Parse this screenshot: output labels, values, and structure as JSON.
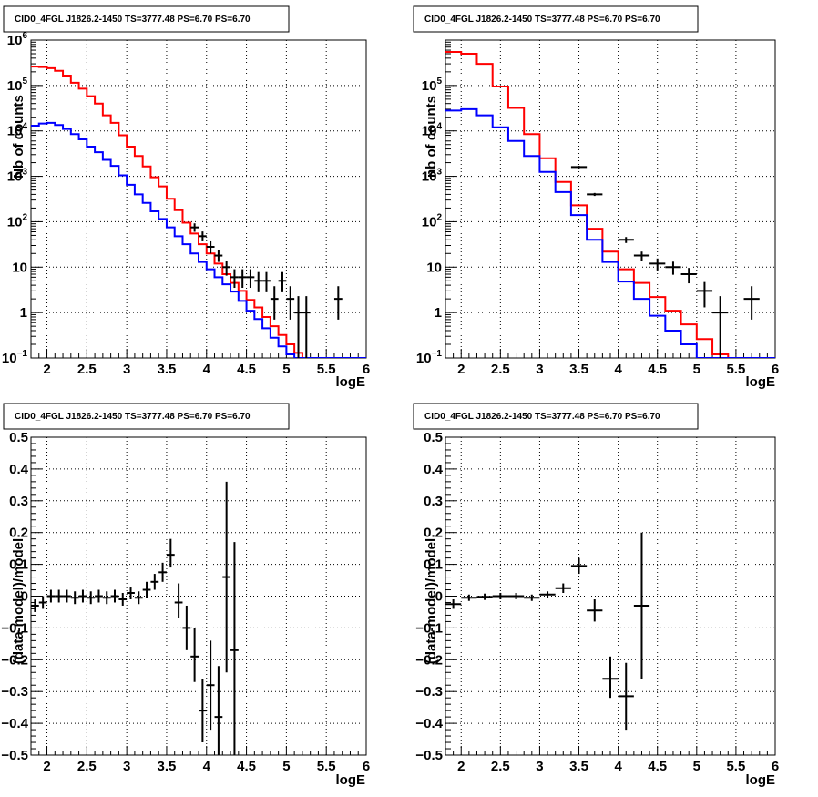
{
  "chart_data": [
    {
      "type": "line",
      "title": "CID0_4FGL J1826.2-1450 TS=3777.48 PS=6.70 PS=6.70",
      "xlabel": "logE",
      "ylabel": "Nb of counts",
      "xlim": [
        1.8,
        6.0
      ],
      "ylim": [
        0.1,
        1000000
      ],
      "log_y": true,
      "grid": true,
      "x_ticks": [
        "2",
        "2.5",
        "3",
        "3.5",
        "4",
        "4.5",
        "5",
        "5.5",
        "6"
      ],
      "y_ticks": [
        {
          "base": "10",
          "exp": "−1"
        },
        {
          "base": "1",
          "exp": ""
        },
        {
          "base": "10",
          "exp": ""
        },
        {
          "base": "10",
          "exp": "2"
        },
        {
          "base": "10",
          "exp": "3"
        },
        {
          "base": "10",
          "exp": "4"
        },
        {
          "base": "10",
          "exp": "5"
        },
        {
          "base": "10",
          "exp": "6"
        }
      ],
      "series": [
        {
          "color": "#ff0000",
          "kind": "step",
          "edges": [
            1.8,
            1.9,
            2.0,
            2.1,
            2.2,
            2.3,
            2.4,
            2.5,
            2.6,
            2.7,
            2.8,
            2.9,
            3.0,
            3.1,
            3.2,
            3.3,
            3.4,
            3.5,
            3.6,
            3.7,
            3.8,
            3.9,
            4.0,
            4.1,
            4.2,
            4.3,
            4.4,
            4.5,
            4.6,
            4.7,
            4.8,
            4.9,
            5.0,
            5.1,
            5.2,
            5.3,
            5.4,
            5.5,
            5.6,
            5.7,
            5.8,
            5.9,
            6.0
          ],
          "values": [
            260000,
            255000,
            240000,
            210000,
            165000,
            115000,
            85000,
            58000,
            40000,
            22000,
            15000,
            8000,
            4500,
            2800,
            1650,
            950,
            600,
            320,
            180,
            95,
            55,
            32,
            20,
            12,
            7,
            4.5,
            3,
            1.9,
            1.3,
            0.8,
            0.5,
            0.32,
            0.2,
            0.13,
            0.1,
            0.1,
            0.1,
            0.1,
            0.1,
            0.1,
            0.1,
            0.1
          ]
        },
        {
          "color": "#0000ff",
          "kind": "step",
          "edges": [
            1.8,
            1.9,
            2.0,
            2.1,
            2.2,
            2.3,
            2.4,
            2.5,
            2.6,
            2.7,
            2.8,
            2.9,
            3.0,
            3.1,
            3.2,
            3.3,
            3.4,
            3.5,
            3.6,
            3.7,
            3.8,
            3.9,
            4.0,
            4.1,
            4.2,
            4.3,
            4.4,
            4.5,
            4.6,
            4.7,
            4.8,
            4.9,
            5.0,
            5.1,
            5.2,
            5.3,
            5.4,
            5.5,
            5.6,
            5.7,
            5.8,
            5.9,
            6.0
          ],
          "values": [
            13000,
            14500,
            15000,
            13500,
            11000,
            8500,
            6500,
            4500,
            3400,
            2300,
            1700,
            1050,
            650,
            400,
            260,
            170,
            115,
            75,
            48,
            32,
            20,
            13,
            9,
            6,
            4.2,
            2.9,
            1.8,
            1.1,
            0.72,
            0.45,
            0.28,
            0.18,
            0.12,
            0.1,
            0.1,
            0.1,
            0.1,
            0.1,
            0.1,
            0.1,
            0.1,
            0.1
          ]
        },
        {
          "color": "#000000",
          "kind": "errorbar",
          "points": [
            {
              "x": 3.85,
              "y": 75,
              "xerr": 0.05,
              "ylo": 60,
              "yhi": 92
            },
            {
              "x": 3.95,
              "y": 48,
              "xerr": 0.05,
              "ylo": 37,
              "yhi": 61
            },
            {
              "x": 4.05,
              "y": 28,
              "xerr": 0.05,
              "ylo": 20,
              "yhi": 37
            },
            {
              "x": 4.15,
              "y": 18,
              "xerr": 0.05,
              "ylo": 13,
              "yhi": 24
            },
            {
              "x": 4.25,
              "y": 10,
              "xerr": 0.05,
              "ylo": 6.5,
              "yhi": 14
            },
            {
              "x": 4.35,
              "y": 6,
              "xerr": 0.05,
              "ylo": 3.5,
              "yhi": 9
            },
            {
              "x": 4.45,
              "y": 6,
              "xerr": 0.05,
              "ylo": 3.5,
              "yhi": 9
            },
            {
              "x": 4.55,
              "y": 6,
              "xerr": 0.05,
              "ylo": 3.5,
              "yhi": 9
            },
            {
              "x": 4.65,
              "y": 5,
              "xerr": 0.05,
              "ylo": 2.8,
              "yhi": 7.8
            },
            {
              "x": 4.75,
              "y": 5,
              "xerr": 0.05,
              "ylo": 2.8,
              "yhi": 7.8
            },
            {
              "x": 4.85,
              "y": 2,
              "xerr": 0.05,
              "ylo": 0.7,
              "yhi": 3.8
            },
            {
              "x": 4.95,
              "y": 5,
              "xerr": 0.05,
              "ylo": 2.8,
              "yhi": 7.8
            },
            {
              "x": 5.05,
              "y": 2,
              "xerr": 0.05,
              "ylo": 0.7,
              "yhi": 3.8
            },
            {
              "x": 5.15,
              "y": 1,
              "xerr": 0.05,
              "ylo": 0.1,
              "yhi": 2.3
            },
            {
              "x": 5.25,
              "y": 1,
              "xerr": 0.05,
              "ylo": 0.1,
              "yhi": 2.3
            },
            {
              "x": 5.65,
              "y": 2,
              "xerr": 0.05,
              "ylo": 0.7,
              "yhi": 3.8
            }
          ]
        }
      ]
    },
    {
      "type": "line",
      "title": "CID0_4FGL J1826.2-1450 TS=3777.48 PS=6.70 PS=6.70",
      "xlabel": "logE",
      "ylabel": "nb of counts",
      "xlim": [
        1.8,
        6.0
      ],
      "ylim": [
        0.1,
        1000000
      ],
      "log_y": true,
      "grid": true,
      "x_ticks": [
        "2",
        "2.5",
        "3",
        "3.5",
        "4",
        "4.5",
        "5",
        "5.5",
        "6"
      ],
      "y_ticks": [
        {
          "base": "10",
          "exp": "−1"
        },
        {
          "base": "1",
          "exp": ""
        },
        {
          "base": "10",
          "exp": ""
        },
        {
          "base": "10",
          "exp": "2"
        },
        {
          "base": "10",
          "exp": "3"
        },
        {
          "base": "10",
          "exp": "4"
        },
        {
          "base": "10",
          "exp": "5"
        }
      ],
      "series": [
        {
          "color": "#ff0000",
          "kind": "step",
          "edges": [
            1.8,
            2.0,
            2.2,
            2.4,
            2.6,
            2.8,
            3.0,
            3.2,
            3.4,
            3.6,
            3.8,
            4.0,
            4.2,
            4.4,
            4.6,
            4.8,
            5.0,
            5.2,
            5.4,
            5.6,
            5.8,
            6.0
          ],
          "values": [
            550000,
            500000,
            300000,
            95000,
            32000,
            8500,
            2500,
            750,
            230,
            70,
            22,
            9,
            4.5,
            2.2,
            1.1,
            0.55,
            0.26,
            0.12,
            0.1,
            0.1,
            0.1
          ]
        },
        {
          "color": "#0000ff",
          "kind": "step",
          "edges": [
            1.8,
            2.0,
            2.2,
            2.4,
            2.6,
            2.8,
            3.0,
            3.2,
            3.4,
            3.6,
            3.8,
            4.0,
            4.2,
            4.4,
            4.6,
            4.8,
            5.0,
            5.2,
            5.4,
            5.6,
            5.8,
            6.0
          ],
          "values": [
            28000,
            30000,
            22000,
            12000,
            6000,
            2800,
            1250,
            450,
            140,
            40,
            13,
            4.8,
            2,
            0.85,
            0.4,
            0.2,
            0.1,
            0.1,
            0.1,
            0.1,
            0.1
          ]
        },
        {
          "color": "#000000",
          "kind": "errorbar",
          "points": [
            {
              "x": 3.5,
              "y": 1600,
              "xerr": 0.1,
              "ylo": 1500,
              "yhi": 1700
            },
            {
              "x": 3.7,
              "y": 400,
              "xerr": 0.1,
              "ylo": 370,
              "yhi": 430
            },
            {
              "x": 4.1,
              "y": 40,
              "xerr": 0.1,
              "ylo": 34,
              "yhi": 46
            },
            {
              "x": 4.3,
              "y": 18,
              "xerr": 0.1,
              "ylo": 14,
              "yhi": 22
            },
            {
              "x": 4.5,
              "y": 12,
              "xerr": 0.1,
              "ylo": 8.5,
              "yhi": 15.5
            },
            {
              "x": 4.7,
              "y": 10,
              "xerr": 0.1,
              "ylo": 6.8,
              "yhi": 13.2
            },
            {
              "x": 4.9,
              "y": 7,
              "xerr": 0.1,
              "ylo": 4.4,
              "yhi": 9.6
            },
            {
              "x": 5.1,
              "y": 3,
              "xerr": 0.1,
              "ylo": 1.3,
              "yhi": 4.7
            },
            {
              "x": 5.3,
              "y": 1,
              "xerr": 0.1,
              "ylo": 0.1,
              "yhi": 2.3
            },
            {
              "x": 5.7,
              "y": 2,
              "xerr": 0.1,
              "ylo": 0.7,
              "yhi": 3.8
            }
          ]
        }
      ]
    },
    {
      "type": "scatter",
      "title": "CID0_4FGL J1826.2-1450 TS=3777.48 PS=6.70 PS=6.70",
      "xlabel": "logE",
      "ylabel": "(data-model)/model",
      "xlim": [
        1.8,
        6.0
      ],
      "ylim": [
        -0.5,
        0.5
      ],
      "grid": true,
      "x_ticks": [
        "2",
        "2.5",
        "3",
        "3.5",
        "4",
        "4.5",
        "5",
        "5.5",
        "6"
      ],
      "y_ticks": [
        "−0.5",
        "−0.4",
        "−0.3",
        "−0.2",
        "−0.1",
        "0",
        "0.1",
        "0.2",
        "0.3",
        "0.4",
        "0.5"
      ],
      "series": [
        {
          "color": "#000000",
          "kind": "errorbar",
          "points": [
            {
              "x": 1.85,
              "y": -0.03,
              "xerr": 0.05,
              "ylo": -0.05,
              "yhi": -0.01
            },
            {
              "x": 1.95,
              "y": -0.02,
              "xerr": 0.05,
              "ylo": -0.04,
              "yhi": 0.0
            },
            {
              "x": 2.05,
              "y": 0.0,
              "xerr": 0.05,
              "ylo": -0.02,
              "yhi": 0.02
            },
            {
              "x": 2.15,
              "y": 0.0,
              "xerr": 0.05,
              "ylo": -0.02,
              "yhi": 0.02
            },
            {
              "x": 2.25,
              "y": 0.0,
              "xerr": 0.05,
              "ylo": -0.02,
              "yhi": 0.02
            },
            {
              "x": 2.35,
              "y": -0.005,
              "xerr": 0.05,
              "ylo": -0.025,
              "yhi": 0.015
            },
            {
              "x": 2.45,
              "y": 0.0,
              "xerr": 0.05,
              "ylo": -0.02,
              "yhi": 0.02
            },
            {
              "x": 2.55,
              "y": -0.005,
              "xerr": 0.05,
              "ylo": -0.025,
              "yhi": 0.015
            },
            {
              "x": 2.65,
              "y": 0.0,
              "xerr": 0.05,
              "ylo": -0.02,
              "yhi": 0.02
            },
            {
              "x": 2.75,
              "y": -0.005,
              "xerr": 0.05,
              "ylo": -0.025,
              "yhi": 0.015
            },
            {
              "x": 2.85,
              "y": 0.0,
              "xerr": 0.05,
              "ylo": -0.02,
              "yhi": 0.02
            },
            {
              "x": 2.95,
              "y": -0.01,
              "xerr": 0.05,
              "ylo": -0.03,
              "yhi": 0.01
            },
            {
              "x": 3.05,
              "y": 0.01,
              "xerr": 0.05,
              "ylo": -0.01,
              "yhi": 0.03
            },
            {
              "x": 3.15,
              "y": -0.005,
              "xerr": 0.05,
              "ylo": -0.025,
              "yhi": 0.015
            },
            {
              "x": 3.25,
              "y": 0.02,
              "xerr": 0.05,
              "ylo": -0.005,
              "yhi": 0.045
            },
            {
              "x": 3.35,
              "y": 0.045,
              "xerr": 0.05,
              "ylo": 0.02,
              "yhi": 0.07
            },
            {
              "x": 3.45,
              "y": 0.075,
              "xerr": 0.05,
              "ylo": 0.045,
              "yhi": 0.105
            },
            {
              "x": 3.55,
              "y": 0.13,
              "xerr": 0.05,
              "ylo": 0.09,
              "yhi": 0.18
            },
            {
              "x": 3.65,
              "y": -0.02,
              "xerr": 0.05,
              "ylo": -0.07,
              "yhi": 0.04
            },
            {
              "x": 3.75,
              "y": -0.1,
              "xerr": 0.05,
              "ylo": -0.17,
              "yhi": -0.03
            },
            {
              "x": 3.85,
              "y": -0.19,
              "xerr": 0.05,
              "ylo": -0.27,
              "yhi": -0.1
            },
            {
              "x": 3.95,
              "y": -0.36,
              "xerr": 0.05,
              "ylo": -0.46,
              "yhi": -0.26
            },
            {
              "x": 4.05,
              "y": -0.28,
              "xerr": 0.05,
              "ylo": -0.42,
              "yhi": -0.14
            },
            {
              "x": 4.15,
              "y": -0.38,
              "xerr": 0.05,
              "ylo": -0.5,
              "yhi": -0.22
            },
            {
              "x": 4.25,
              "y": 0.06,
              "xerr": 0.05,
              "ylo": -0.24,
              "yhi": 0.36
            },
            {
              "x": 4.35,
              "y": -0.17,
              "xerr": 0.05,
              "ylo": -0.5,
              "yhi": 0.17
            }
          ]
        }
      ]
    },
    {
      "type": "scatter",
      "title": "CID0_4FGL J1826.2-1450 TS=3777.48 PS=6.70 PS=6.70",
      "xlabel": "logE",
      "ylabel": "(data-model)/model",
      "xlim": [
        1.8,
        6.0
      ],
      "ylim": [
        -0.5,
        0.5
      ],
      "grid": true,
      "x_ticks": [
        "2",
        "2.5",
        "3",
        "3.5",
        "4",
        "4.5",
        "5",
        "5.5",
        "6"
      ],
      "y_ticks": [
        "−0.5",
        "−0.4",
        "−0.3",
        "−0.2",
        "−0.1",
        "0",
        "0.1",
        "0.2",
        "0.3",
        "0.4",
        "0.5"
      ],
      "series": [
        {
          "color": "#000000",
          "kind": "errorbar",
          "points": [
            {
              "x": 1.9,
              "y": -0.025,
              "xerr": 0.1,
              "ylo": -0.04,
              "yhi": -0.01
            },
            {
              "x": 2.1,
              "y": -0.005,
              "xerr": 0.1,
              "ylo": -0.015,
              "yhi": 0.005
            },
            {
              "x": 2.3,
              "y": -0.002,
              "xerr": 0.1,
              "ylo": -0.012,
              "yhi": 0.008
            },
            {
              "x": 2.5,
              "y": 0.0,
              "xerr": 0.1,
              "ylo": -0.01,
              "yhi": 0.01
            },
            {
              "x": 2.7,
              "y": 0.0,
              "xerr": 0.1,
              "ylo": -0.01,
              "yhi": 0.01
            },
            {
              "x": 2.9,
              "y": -0.005,
              "xerr": 0.1,
              "ylo": -0.015,
              "yhi": 0.005
            },
            {
              "x": 3.1,
              "y": 0.005,
              "xerr": 0.1,
              "ylo": -0.005,
              "yhi": 0.015
            },
            {
              "x": 3.3,
              "y": 0.025,
              "xerr": 0.1,
              "ylo": 0.01,
              "yhi": 0.04
            },
            {
              "x": 3.5,
              "y": 0.095,
              "xerr": 0.1,
              "ylo": 0.07,
              "yhi": 0.12
            },
            {
              "x": 3.7,
              "y": -0.045,
              "xerr": 0.1,
              "ylo": -0.08,
              "yhi": -0.01
            },
            {
              "x": 3.9,
              "y": -0.26,
              "xerr": 0.1,
              "ylo": -0.32,
              "yhi": -0.19
            },
            {
              "x": 4.1,
              "y": -0.315,
              "xerr": 0.1,
              "ylo": -0.42,
              "yhi": -0.21
            },
            {
              "x": 4.3,
              "y": -0.03,
              "xerr": 0.1,
              "ylo": -0.26,
              "yhi": 0.2
            }
          ]
        }
      ]
    }
  ]
}
